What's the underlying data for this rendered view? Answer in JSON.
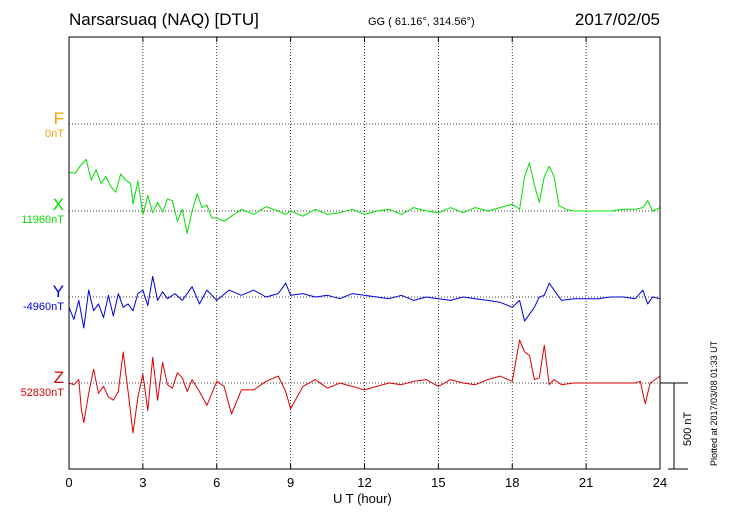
{
  "header": {
    "station": "Narsarsuaq (NAQ)  [DTU]",
    "coords": "GG ( 61.16°, 314.56°)",
    "date": "2017/02/05"
  },
  "footer": {
    "plotted": "Plotted at 2017/03/08 01:33 UT"
  },
  "chart_data": {
    "type": "line",
    "title": "Narsarsuaq (NAQ)  [DTU]",
    "xlabel": "U T (hour)",
    "xlim": [
      0,
      24
    ],
    "xticks": [
      "0",
      "3",
      "6",
      "9",
      "12",
      "15",
      "18",
      "21",
      "24"
    ],
    "scale_bar": "500 nT",
    "grid": true,
    "series": [
      {
        "name": "F",
        "baseline_label": "0nT",
        "color": "#f5a300",
        "x": [],
        "values": []
      },
      {
        "name": "X",
        "baseline_label": "11960nT",
        "color": "#00e000",
        "x": [
          0.0,
          0.25,
          0.5,
          0.7,
          0.9,
          1.1,
          1.3,
          1.5,
          1.7,
          1.9,
          2.1,
          2.3,
          2.5,
          2.6,
          2.8,
          3.0,
          3.2,
          3.4,
          3.6,
          3.8,
          4.0,
          4.2,
          4.4,
          4.6,
          4.8,
          5.0,
          5.2,
          5.4,
          5.6,
          5.8,
          6.0,
          6.3,
          6.6,
          7.0,
          7.5,
          8.0,
          8.5,
          8.8,
          9.0,
          9.5,
          10.0,
          10.5,
          11.0,
          11.5,
          12.0,
          12.5,
          13.0,
          13.5,
          14.0,
          14.5,
          15.0,
          15.5,
          16.0,
          16.5,
          17.0,
          17.5,
          18.0,
          18.3,
          18.5,
          18.7,
          18.9,
          19.1,
          19.3,
          19.5,
          19.7,
          19.9,
          20.2,
          20.5,
          21.0,
          21.5,
          22.0,
          22.5,
          23.0,
          23.3,
          23.5,
          23.7,
          24.0
        ],
        "values": [
          225,
          220,
          270,
          300,
          180,
          240,
          160,
          200,
          140,
          110,
          215,
          180,
          160,
          40,
          175,
          -20,
          90,
          -10,
          50,
          -5,
          70,
          60,
          -60,
          10,
          -130,
          0,
          100,
          20,
          35,
          -40,
          -40,
          -60,
          -30,
          10,
          -20,
          25,
          0,
          -20,
          0,
          -30,
          10,
          -20,
          -10,
          10,
          -20,
          0,
          10,
          -20,
          20,
          0,
          -10,
          20,
          -10,
          20,
          0,
          20,
          40,
          10,
          200,
          280,
          150,
          50,
          200,
          260,
          200,
          30,
          10,
          0,
          0,
          0,
          0,
          10,
          10,
          20,
          60,
          0,
          20
        ]
      },
      {
        "name": "Y",
        "baseline_label": "-4960nT",
        "color": "#0000dd",
        "x": [
          0.0,
          0.2,
          0.4,
          0.6,
          0.8,
          1.0,
          1.2,
          1.4,
          1.6,
          1.8,
          2.0,
          2.2,
          2.4,
          2.6,
          2.8,
          3.0,
          3.2,
          3.4,
          3.6,
          3.8,
          4.0,
          4.3,
          4.6,
          5.0,
          5.3,
          5.6,
          6.0,
          6.5,
          7.0,
          7.5,
          8.0,
          8.5,
          8.8,
          9.0,
          9.5,
          10.0,
          10.5,
          11.0,
          11.5,
          12.0,
          12.5,
          13.0,
          13.5,
          14.0,
          14.5,
          15.0,
          15.5,
          16.0,
          16.5,
          17.0,
          17.5,
          18.0,
          18.3,
          18.5,
          18.7,
          18.9,
          19.1,
          19.3,
          19.5,
          19.7,
          20.0,
          20.5,
          21.0,
          21.5,
          22.0,
          22.5,
          23.0,
          23.3,
          23.5,
          23.7,
          24.0
        ],
        "values": [
          -60,
          -130,
          -20,
          -180,
          40,
          -80,
          -40,
          -120,
          10,
          -110,
          20,
          -60,
          -40,
          -80,
          20,
          40,
          -50,
          120,
          -20,
          30,
          -10,
          20,
          -20,
          60,
          -40,
          40,
          -20,
          40,
          10,
          40,
          0,
          20,
          80,
          10,
          20,
          0,
          10,
          -10,
          20,
          10,
          0,
          -10,
          10,
          -20,
          0,
          -10,
          -20,
          0,
          -10,
          -20,
          -30,
          -60,
          -20,
          -140,
          -100,
          -60,
          0,
          10,
          80,
          40,
          -20,
          -10,
          -10,
          -10,
          0,
          0,
          -10,
          40,
          -40,
          0,
          -10
        ]
      },
      {
        "name": "Z",
        "baseline_label": "52830nT",
        "color": "#dd0000",
        "x": [
          0.0,
          0.2,
          0.4,
          0.5,
          0.6,
          0.8,
          1.0,
          1.2,
          1.4,
          1.6,
          1.8,
          2.0,
          2.2,
          2.4,
          2.6,
          2.8,
          3.0,
          3.2,
          3.4,
          3.6,
          3.8,
          4.0,
          4.2,
          4.4,
          4.6,
          4.8,
          5.0,
          5.3,
          5.6,
          6.0,
          6.3,
          6.6,
          7.0,
          7.5,
          8.0,
          8.5,
          8.8,
          9.0,
          9.5,
          10.0,
          10.5,
          11.0,
          11.5,
          12.0,
          12.5,
          13.0,
          13.5,
          14.0,
          14.5,
          15.0,
          15.5,
          16.0,
          16.5,
          17.0,
          17.5,
          18.0,
          18.3,
          18.5,
          18.7,
          18.9,
          19.1,
          19.3,
          19.5,
          19.7,
          20.0,
          20.5,
          21.0,
          21.5,
          22.0,
          22.5,
          23.0,
          23.2,
          23.4,
          23.6,
          23.8,
          24.0
        ],
        "values": [
          0,
          -10,
          20,
          -150,
          -230,
          -60,
          80,
          -60,
          -20,
          -80,
          -100,
          -50,
          180,
          -50,
          -290,
          -80,
          50,
          -160,
          150,
          -100,
          120,
          -10,
          -30,
          60,
          30,
          -50,
          20,
          -50,
          -130,
          10,
          -20,
          -180,
          -40,
          -40,
          10,
          40,
          -50,
          -150,
          -20,
          20,
          -30,
          0,
          -20,
          -40,
          -20,
          0,
          -10,
          10,
          20,
          -20,
          20,
          0,
          -10,
          20,
          40,
          10,
          250,
          180,
          160,
          20,
          30,
          220,
          -10,
          20,
          -10,
          0,
          0,
          0,
          0,
          0,
          0,
          10,
          -120,
          0,
          20,
          40
        ]
      }
    ]
  }
}
